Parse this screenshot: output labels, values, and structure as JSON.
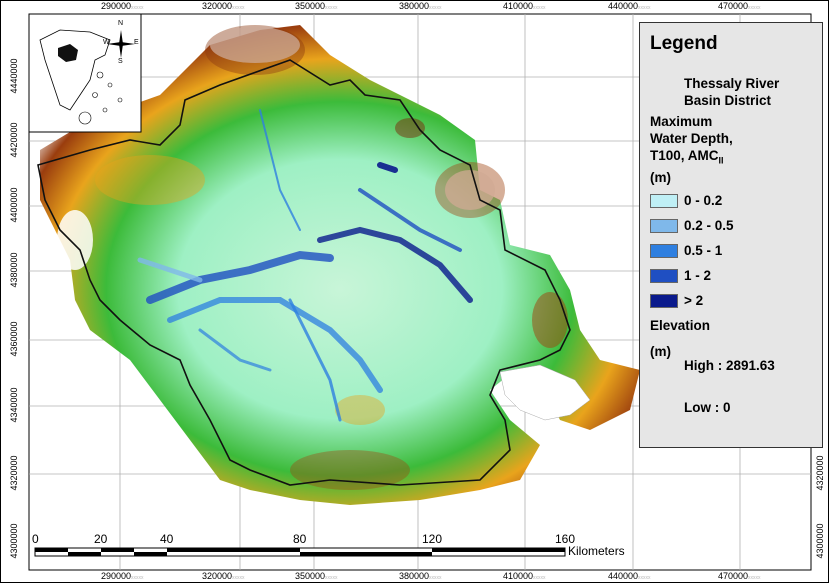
{
  "x_ticks": [
    "290000",
    "320000",
    "350000",
    "380000",
    "410000",
    "440000",
    "470000"
  ],
  "y_ticks": [
    "4440000",
    "4420000",
    "4400000",
    "4380000",
    "4360000",
    "4340000",
    "4320000",
    "4300000"
  ],
  "tick_suffix": "xxxxx",
  "legend": {
    "title": "Legend",
    "basin_label_1": "Thessaly River",
    "basin_label_2": "Basin District",
    "depth_title_1": "Maximum",
    "depth_title_2": "Water Depth,",
    "depth_title_3": "T100, AMC",
    "depth_title_sub": "II",
    "depth_unit": "(m)",
    "depth_classes": [
      {
        "label": "0 - 0.2",
        "color": "#bfeff5"
      },
      {
        "label": "0.2 - 0.5",
        "color": "#7fb8ea"
      },
      {
        "label": "0.5 - 1",
        "color": "#2e7fe0"
      },
      {
        "label": "1 - 2",
        "color": "#1f4fc2"
      },
      {
        "label": "> 2",
        "color": "#0a1a8c"
      }
    ],
    "elevation_title": "Elevation",
    "elevation_unit": "(m)",
    "elevation_high": "High : 2891.63",
    "elevation_low": "Low : 0"
  },
  "scale_bar": {
    "ticks": [
      "0",
      "20",
      "40",
      "80",
      "120",
      "160"
    ],
    "unit": "Kilometers"
  },
  "compass": {
    "n": "N",
    "s": "S",
    "e": "E",
    "w": "W"
  }
}
